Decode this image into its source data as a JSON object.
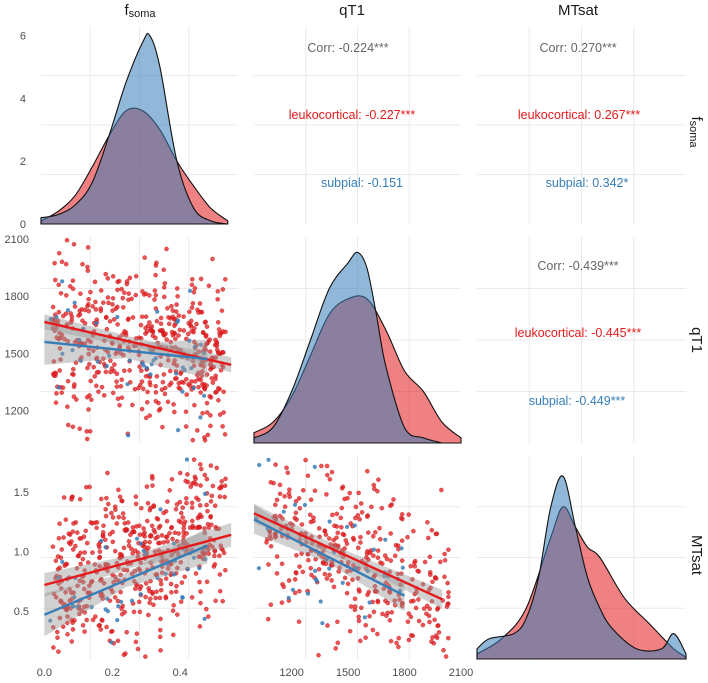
{
  "colors": {
    "leuko": "#e41a1c",
    "subpial": "#377eb8",
    "corr": "#666666",
    "overlap": "#7b6394",
    "panel_bg": "#ffffff",
    "grid": "#ebebeb",
    "ribbon": "#9a9a9a"
  },
  "strips": {
    "col1_main": "f",
    "col1_sub": "soma",
    "col2": "qT1",
    "col3": "MTsat",
    "row1_main": "f",
    "row1_sub": "soma",
    "row2": "qT1",
    "row3": "MTsat"
  },
  "chart_data": [
    {
      "type": "area",
      "panel": "density-fsoma",
      "xlim": [
        0.0,
        0.58
      ],
      "ylim": [
        0,
        6.3
      ],
      "y_ticks": [
        "0",
        "2",
        "4",
        "6"
      ],
      "series": [
        {
          "name": "leukocortical",
          "x": [
            0.0,
            0.05,
            0.1,
            0.15,
            0.2,
            0.25,
            0.3,
            0.35,
            0.4,
            0.45,
            0.5,
            0.55
          ],
          "values": [
            0.1,
            0.4,
            0.9,
            1.8,
            2.8,
            3.6,
            3.6,
            3.0,
            2.0,
            1.2,
            0.5,
            0.1
          ]
        },
        {
          "name": "subpial",
          "x": [
            0.0,
            0.05,
            0.1,
            0.15,
            0.2,
            0.25,
            0.3,
            0.32,
            0.35,
            0.4,
            0.45,
            0.5,
            0.55
          ],
          "values": [
            0.2,
            0.3,
            0.6,
            1.3,
            2.8,
            4.5,
            5.8,
            6.0,
            5.0,
            2.0,
            0.5,
            0.1,
            0.0
          ]
        }
      ]
    },
    {
      "type": "area",
      "panel": "density-qT1",
      "xlim": [
        1000,
        2100
      ],
      "ylim": [
        0,
        0.004
      ],
      "series": [
        {
          "name": "leukocortical",
          "x": [
            1000,
            1100,
            1200,
            1300,
            1400,
            1500,
            1600,
            1700,
            1800,
            1900,
            2000,
            2100
          ],
          "values": [
            0.0002,
            0.0004,
            0.0009,
            0.0017,
            0.0025,
            0.0028,
            0.0028,
            0.0022,
            0.0014,
            0.001,
            0.0004,
            0.0001
          ]
        },
        {
          "name": "subpial",
          "x": [
            1000,
            1100,
            1200,
            1300,
            1400,
            1500,
            1550,
            1600,
            1650,
            1700,
            1800,
            1900,
            2000
          ],
          "values": [
            0.0001,
            0.0003,
            0.001,
            0.002,
            0.003,
            0.0035,
            0.0037,
            0.0034,
            0.0025,
            0.0015,
            0.0003,
            0.0001,
            0.0
          ]
        }
      ]
    },
    {
      "type": "area",
      "panel": "density-MTsat",
      "xlim": [
        0.1,
        1.8
      ],
      "ylim": [
        0,
        2.0
      ],
      "series": [
        {
          "name": "leukocortical",
          "x": [
            0.1,
            0.3,
            0.5,
            0.7,
            0.8,
            0.9,
            1.0,
            1.1,
            1.3,
            1.5,
            1.7,
            1.8
          ],
          "values": [
            0.05,
            0.2,
            0.5,
            1.2,
            1.5,
            1.3,
            1.1,
            1.0,
            0.6,
            0.35,
            0.1,
            0.02
          ]
        },
        {
          "name": "subpial",
          "x": [
            0.1,
            0.2,
            0.4,
            0.5,
            0.6,
            0.7,
            0.8,
            0.9,
            1.0,
            1.1,
            1.2,
            1.4,
            1.6,
            1.7,
            1.8
          ],
          "values": [
            0.1,
            0.2,
            0.25,
            0.4,
            0.8,
            1.5,
            1.8,
            1.3,
            0.8,
            0.5,
            0.3,
            0.1,
            0.1,
            0.25,
            0.05
          ]
        }
      ]
    },
    {
      "type": "scatter",
      "panel": "scatter-fsoma-qT1",
      "xlabel": "fsoma",
      "ylabel": "qT1",
      "xlim": [
        -0.01,
        0.57
      ],
      "ylim": [
        1030,
        2110
      ],
      "x_ticks": [
        "0.0",
        "0.2",
        "0.4"
      ],
      "y_ticks": [
        "1200",
        "1500",
        "1800",
        "2100"
      ],
      "regression": [
        {
          "name": "leukocortical",
          "x": [
            0.0,
            0.55
          ],
          "values": [
            1665,
            1440
          ],
          "se_width": [
            40,
            25,
            40
          ]
        },
        {
          "name": "subpial",
          "x": [
            0.0,
            0.48
          ],
          "values": [
            1560,
            1470
          ],
          "se_width": [
            120,
            40,
            100
          ]
        }
      ]
    },
    {
      "type": "scatter",
      "panel": "scatter-fsoma-MTsat",
      "xlabel": "fsoma",
      "ylabel": "MTsat",
      "xlim": [
        -0.01,
        0.57
      ],
      "ylim": [
        0.1,
        1.8
      ],
      "x_ticks": [
        "0.0",
        "0.2",
        "0.4"
      ],
      "y_ticks": [
        "0.5",
        "1.0",
        "1.5"
      ],
      "regression": [
        {
          "name": "leukocortical",
          "x": [
            0.0,
            0.55
          ],
          "values": [
            0.72,
            1.14
          ],
          "se_width": [
            0.1,
            0.05,
            0.1
          ]
        },
        {
          "name": "subpial",
          "x": [
            0.0,
            0.48
          ],
          "values": [
            0.47,
            1.05
          ],
          "se_width": [
            0.18,
            0.06,
            0.15
          ]
        }
      ]
    },
    {
      "type": "scatter",
      "panel": "scatter-qT1-MTsat",
      "xlabel": "qT1",
      "ylabel": "MTsat",
      "xlim": [
        1000,
        2100
      ],
      "ylim": [
        0.1,
        1.8
      ],
      "x_ticks": [
        "1200",
        "1500",
        "1800",
        "2100"
      ],
      "regression": [
        {
          "name": "leukocortical",
          "x": [
            1000,
            2000
          ],
          "values": [
            1.32,
            0.6
          ],
          "se_width": [
            0.08,
            0.04,
            0.08
          ]
        },
        {
          "name": "subpial",
          "x": [
            1000,
            1800
          ],
          "values": [
            1.27,
            0.63
          ],
          "se_width": [
            0.12,
            0.05,
            0.13
          ]
        }
      ]
    },
    {
      "type": "table",
      "panel": "corr-fsoma-qT1",
      "labels": [
        "Corr: -0.224***",
        "leukocortical: -0.227***",
        "subpial: -0.151"
      ]
    },
    {
      "type": "table",
      "panel": "corr-fsoma-MTsat",
      "labels": [
        "Corr: 0.270***",
        "leukocortical: 0.267***",
        "subpial: 0.342*"
      ]
    },
    {
      "type": "table",
      "panel": "corr-qT1-MTsat",
      "labels": [
        "Corr: -0.439***",
        "leukocortical: -0.445***",
        "subpial: -0.449***"
      ]
    }
  ]
}
